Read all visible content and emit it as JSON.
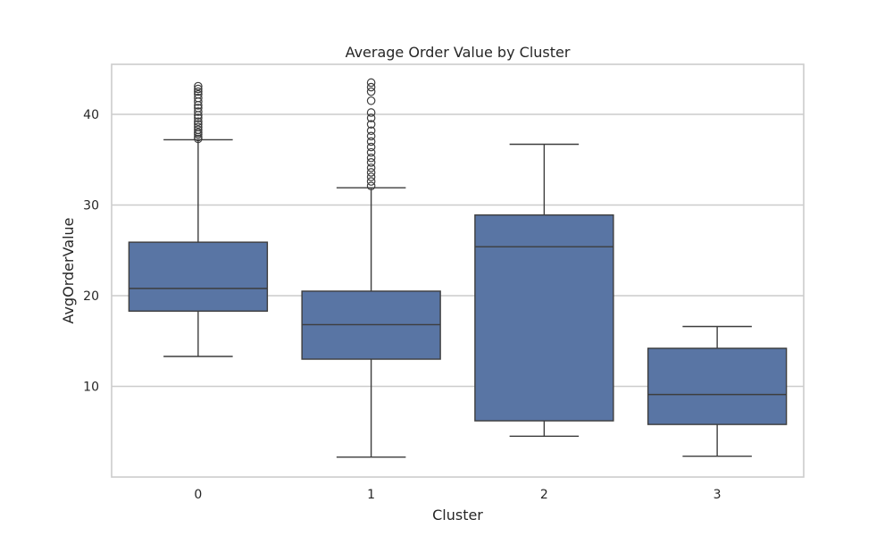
{
  "chart_data": {
    "type": "box",
    "title": "Average Order Value by Cluster",
    "xlabel": "Cluster",
    "ylabel": "AvgOrderValue",
    "categories": [
      "0",
      "1",
      "2",
      "3"
    ],
    "ylim": [
      0,
      45.5
    ],
    "yticks": [
      10,
      20,
      30,
      40
    ],
    "grid": "horizontal",
    "colors": {
      "box": "#5975a4",
      "line": "#3d3d3d",
      "grid": "#cccccc",
      "frame": "#cccccc"
    },
    "boxes": [
      {
        "category": "0",
        "whisker_low": 13.3,
        "q1": 18.3,
        "median": 20.8,
        "q3": 25.9,
        "whisker_high": 37.2,
        "outliers": [
          37.3,
          37.5,
          37.8,
          38.0,
          38.3,
          38.6,
          38.9,
          39.2,
          39.6,
          39.9,
          40.3,
          40.7,
          41.0,
          41.4,
          41.8,
          42.2,
          42.5,
          42.8,
          43.1
        ]
      },
      {
        "category": "1",
        "whisker_low": 2.2,
        "q1": 13.0,
        "median": 16.8,
        "q3": 20.5,
        "whisker_high": 31.9,
        "outliers": [
          32.1,
          32.6,
          33.1,
          33.6,
          34.1,
          34.7,
          35.2,
          35.8,
          36.4,
          37.0,
          37.6,
          38.2,
          38.9,
          39.6,
          40.2,
          41.5,
          42.5,
          43.0,
          43.5
        ]
      },
      {
        "category": "2",
        "whisker_low": 4.5,
        "q1": 6.2,
        "median": 25.4,
        "q3": 28.9,
        "whisker_high": 36.7,
        "outliers": []
      },
      {
        "category": "3",
        "whisker_low": 2.3,
        "q1": 5.8,
        "median": 9.1,
        "q3": 14.2,
        "whisker_high": 16.6,
        "outliers": []
      }
    ]
  }
}
